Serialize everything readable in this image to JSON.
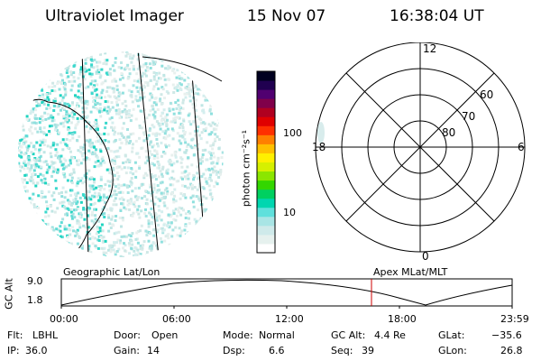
{
  "header": {
    "instrument": "Ultraviolet Imager",
    "date": "15 Nov 07",
    "time": "16:38:04 UT"
  },
  "colorbar": {
    "unit_label": "photon cm⁻²s⁻¹",
    "tick_100": "100",
    "tick_10": "10",
    "colors": [
      "#ffffff",
      "#e6f1ee",
      "#cfeaea",
      "#a9e5e5",
      "#5fe0dc",
      "#00d6b0",
      "#00d060",
      "#33d600",
      "#8be600",
      "#d6f000",
      "#fff000",
      "#ffc000",
      "#ff8000",
      "#ff3000",
      "#e00000",
      "#b00020",
      "#80004a",
      "#500070",
      "#200050",
      "#000020"
    ]
  },
  "polar_plot": {
    "labels": {
      "mlt_12": "12",
      "mlt_6": "6",
      "mlt_18": "18",
      "mlt_0": "0",
      "lat_60": "60",
      "lat_70": "70",
      "lat_80": "80"
    }
  },
  "orbit_panel": {
    "left_title": "Geographic Lat/Lon",
    "right_title": "Apex MLat/MLT",
    "y_axis_label": "GC Alt",
    "y_top": "9.0",
    "y_bottom": "1.8",
    "x_ticks": [
      "00:00",
      "06:00",
      "12:00",
      "18:00",
      "23:59"
    ],
    "current_time_color": "#cc0000"
  },
  "status": {
    "flt_label": "Flt:",
    "flt_value": "LBHL",
    "ip_label": "IP:",
    "ip_value": "36.0",
    "door_label": "Door:",
    "door_value": "Open",
    "gain_label": "Gain:",
    "gain_value": "14",
    "mode_label": "Mode:",
    "mode_value": "Normal",
    "dsp_label": "Dsp:",
    "dsp_value": "6.6",
    "gcalt_label": "GC Alt:",
    "gcalt_value": "4.4 Re",
    "seq_label": "Seq:",
    "seq_value": "39",
    "glat_label": "GLat:",
    "glat_value": "−35.6",
    "glon_label": "GLon:",
    "glon_value": "26.8"
  }
}
